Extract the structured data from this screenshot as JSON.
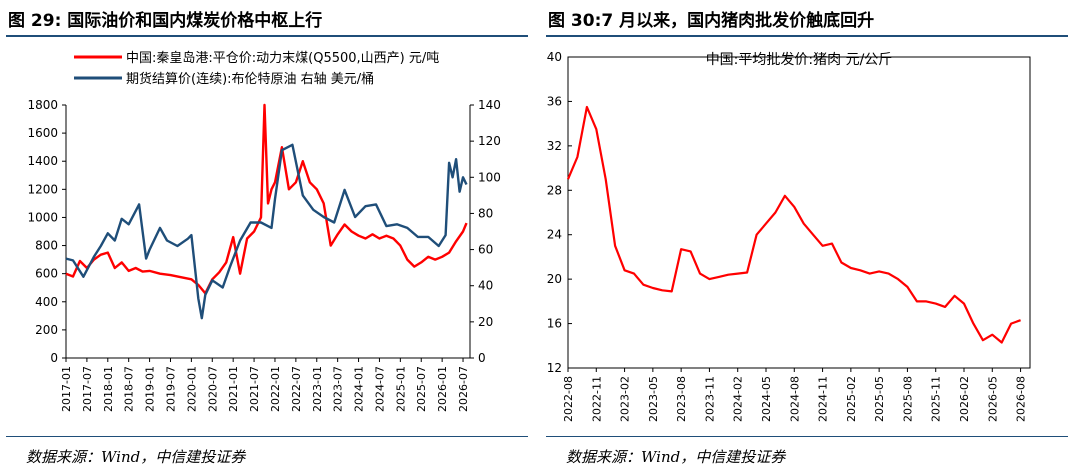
{
  "left_panel": {
    "title": "图 29: 国际油价和国内煤炭价格中枢上行",
    "source": "数据来源：Wind，中信建投证券"
  },
  "right_panel": {
    "title": "图 30:7 月以来，国内猪肉批发价触底回升",
    "source": "数据来源：Wind，中信建投证券"
  },
  "chart_data": [
    {
      "type": "line",
      "title": "",
      "x_tick_labels": [
        "2017-01",
        "2017-07",
        "2018-01",
        "2018-07",
        "2019-01",
        "2019-07",
        "2020-01",
        "2020-07",
        "2021-01",
        "2021-07",
        "2022-01",
        "2022-07",
        "2023-01",
        "2023-07",
        "2024-01",
        "2024-07",
        "2025-01",
        "2025-07",
        "2026-01",
        "2026-07"
      ],
      "y_left": {
        "min": 0,
        "max": 1800,
        "ticks": [
          "0",
          "200",
          "400",
          "600",
          "800",
          "1000",
          "1200",
          "1400",
          "1600",
          "1800"
        ]
      },
      "y_right": {
        "min": 0,
        "max": 140,
        "ticks": [
          "0",
          "20",
          "40",
          "60",
          "80",
          "100",
          "120",
          "140"
        ]
      },
      "grid": false,
      "legend_position": "top-left",
      "series": [
        {
          "name": "中国:秦皇岛港:平仓价:动力末煤(Q5500,山西产)  元/吨",
          "color": "#ff0000",
          "axis": "left",
          "x": [
            "2017-01",
            "2017-03",
            "2017-05",
            "2017-07",
            "2017-09",
            "2017-11",
            "2018-01",
            "2018-03",
            "2018-05",
            "2018-07",
            "2018-09",
            "2018-11",
            "2019-01",
            "2019-04",
            "2019-07",
            "2019-10",
            "2020-01",
            "2020-03",
            "2020-05",
            "2020-07",
            "2020-09",
            "2020-11",
            "2021-01",
            "2021-03",
            "2021-05",
            "2021-07",
            "2021-09",
            "2021-10",
            "2021-11",
            "2021-12",
            "2022-01",
            "2022-03",
            "2022-05",
            "2022-07",
            "2022-09",
            "2022-11",
            "2023-01",
            "2023-03",
            "2023-05",
            "2023-07",
            "2023-09",
            "2023-11",
            "2024-01",
            "2024-03",
            "2024-05",
            "2024-07",
            "2024-09",
            "2024-11",
            "2025-01",
            "2025-03",
            "2025-05",
            "2025-07",
            "2025-09",
            "2025-11",
            "2026-01",
            "2026-03",
            "2026-05",
            "2026-07",
            "2026-08"
          ],
          "y": [
            600,
            580,
            690,
            640,
            700,
            735,
            750,
            640,
            680,
            620,
            640,
            615,
            620,
            600,
            590,
            575,
            560,
            520,
            460,
            560,
            610,
            680,
            860,
            600,
            850,
            900,
            1000,
            1800,
            1100,
            1200,
            1250,
            1500,
            1200,
            1250,
            1400,
            1250,
            1200,
            1100,
            800,
            880,
            950,
            900,
            870,
            850,
            880,
            850,
            870,
            850,
            800,
            700,
            650,
            680,
            720,
            700,
            720,
            750,
            830,
            900,
            960
          ]
        },
        {
          "name": "期货结算价(连续):布伦特原油  右轴  美元/桶",
          "color": "#1f4e79",
          "axis": "right",
          "x": [
            "2017-01",
            "2017-03",
            "2017-06",
            "2017-09",
            "2017-11",
            "2018-01",
            "2018-03",
            "2018-05",
            "2018-07",
            "2018-10",
            "2018-12",
            "2019-01",
            "2019-04",
            "2019-06",
            "2019-09",
            "2019-12",
            "2020-01",
            "2020-03",
            "2020-04",
            "2020-05",
            "2020-07",
            "2020-10",
            "2020-12",
            "2021-03",
            "2021-06",
            "2021-09",
            "2021-12",
            "2022-01",
            "2022-03",
            "2022-06",
            "2022-09",
            "2022-12",
            "2023-03",
            "2023-06",
            "2023-09",
            "2023-12",
            "2024-03",
            "2024-06",
            "2024-09",
            "2024-12",
            "2025-03",
            "2025-06",
            "2025-09",
            "2025-12",
            "2026-02",
            "2026-03",
            "2026-04",
            "2026-05",
            "2026-06",
            "2026-07",
            "2026-08"
          ],
          "y": [
            55,
            54,
            45,
            56,
            62,
            69,
            65,
            77,
            74,
            85,
            55,
            60,
            72,
            65,
            62,
            66,
            68,
            33,
            22,
            35,
            43,
            39,
            50,
            65,
            75,
            75,
            72,
            88,
            115,
            118,
            90,
            82,
            78,
            75,
            93,
            78,
            84,
            85,
            73,
            74,
            72,
            67,
            67,
            62,
            68,
            108,
            100,
            110,
            92,
            100,
            96
          ]
        }
      ]
    },
    {
      "type": "line",
      "title": "中国:平均批发价:猪肉  元/公斤",
      "x_tick_labels": [
        "2022-08",
        "2022-11",
        "2023-02",
        "2023-05",
        "2023-08",
        "2023-11",
        "2024-02",
        "2024-05",
        "2024-08",
        "2024-11",
        "2025-02",
        "2025-05",
        "2025-08",
        "2025-11",
        "2026-02",
        "2026-05",
        "2026-08"
      ],
      "y": {
        "min": 12,
        "max": 40,
        "ticks": [
          "12",
          "16",
          "20",
          "24",
          "28",
          "32",
          "36",
          "40"
        ]
      },
      "grid": false,
      "series": [
        {
          "color": "#ff0000",
          "x": [
            "2022-08",
            "2022-09",
            "2022-10",
            "2022-11",
            "2022-12",
            "2023-01",
            "2023-02",
            "2023-03",
            "2023-04",
            "2023-05",
            "2023-06",
            "2023-07",
            "2023-08",
            "2023-09",
            "2023-10",
            "2023-11",
            "2023-12",
            "2024-01",
            "2024-02",
            "2024-03",
            "2024-04",
            "2024-05",
            "2024-06",
            "2024-07",
            "2024-08",
            "2024-09",
            "2024-10",
            "2024-11",
            "2024-12",
            "2025-01",
            "2025-02",
            "2025-03",
            "2025-04",
            "2025-05",
            "2025-06",
            "2025-07",
            "2025-08",
            "2025-09",
            "2025-10",
            "2025-11",
            "2025-12",
            "2026-01",
            "2026-02",
            "2026-03",
            "2026-04",
            "2026-05",
            "2026-06",
            "2026-07",
            "2026-08"
          ],
          "y": [
            29.0,
            31.0,
            35.5,
            33.5,
            29.0,
            23.0,
            20.8,
            20.5,
            19.5,
            19.2,
            19.0,
            18.9,
            22.7,
            22.5,
            20.5,
            20.0,
            20.2,
            20.4,
            20.5,
            20.6,
            24.0,
            25.0,
            26.0,
            27.5,
            26.5,
            25.0,
            24.0,
            23.0,
            23.2,
            21.5,
            21.0,
            20.8,
            20.5,
            20.7,
            20.5,
            20.0,
            19.3,
            18.0,
            18.0,
            17.8,
            17.5,
            18.5,
            17.8,
            16.0,
            14.5,
            15.0,
            14.3,
            16.0,
            16.3
          ]
        }
      ]
    }
  ]
}
